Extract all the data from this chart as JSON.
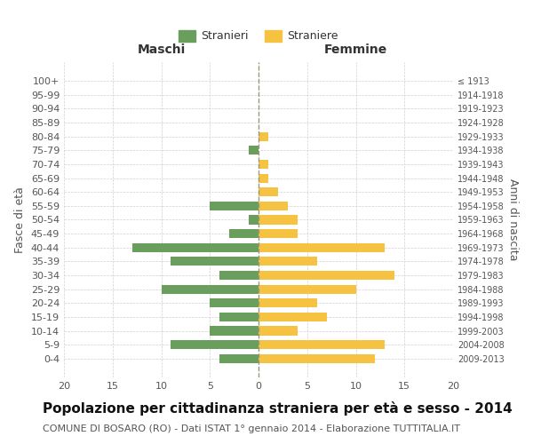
{
  "age_groups": [
    "100+",
    "95-99",
    "90-94",
    "85-89",
    "80-84",
    "75-79",
    "70-74",
    "65-69",
    "60-64",
    "55-59",
    "50-54",
    "45-49",
    "40-44",
    "35-39",
    "30-34",
    "25-29",
    "20-24",
    "15-19",
    "10-14",
    "5-9",
    "0-4"
  ],
  "birth_years": [
    "≤ 1913",
    "1914-1918",
    "1919-1923",
    "1924-1928",
    "1929-1933",
    "1934-1938",
    "1939-1943",
    "1944-1948",
    "1949-1953",
    "1954-1958",
    "1959-1963",
    "1964-1968",
    "1969-1973",
    "1974-1978",
    "1979-1983",
    "1984-1988",
    "1989-1993",
    "1994-1998",
    "1999-2003",
    "2004-2008",
    "2009-2013"
  ],
  "males": [
    0,
    0,
    0,
    0,
    0,
    1,
    0,
    0,
    0,
    5,
    1,
    3,
    13,
    9,
    4,
    10,
    5,
    4,
    5,
    9,
    4
  ],
  "females": [
    0,
    0,
    0,
    0,
    1,
    0,
    1,
    1,
    2,
    3,
    4,
    4,
    13,
    6,
    14,
    10,
    6,
    7,
    4,
    13,
    12
  ],
  "male_color": "#6a9e5c",
  "female_color": "#f5c242",
  "background_color": "#ffffff",
  "grid_color": "#cccccc",
  "center_line_color": "#999977",
  "xlim": 20,
  "title": "Popolazione per cittadinanza straniera per età e sesso - 2014",
  "subtitle": "COMUNE DI BOSARO (RO) - Dati ISTAT 1° gennaio 2014 - Elaborazione TUTTITALIA.IT",
  "xlabel_left": "Maschi",
  "xlabel_right": "Femmine",
  "ylabel_left": "Fasce di età",
  "ylabel_right": "Anni di nascita",
  "legend_males": "Stranieri",
  "legend_females": "Straniere",
  "title_fontsize": 11,
  "subtitle_fontsize": 8,
  "axis_label_fontsize": 9,
  "tick_fontsize": 8,
  "legend_fontsize": 9
}
